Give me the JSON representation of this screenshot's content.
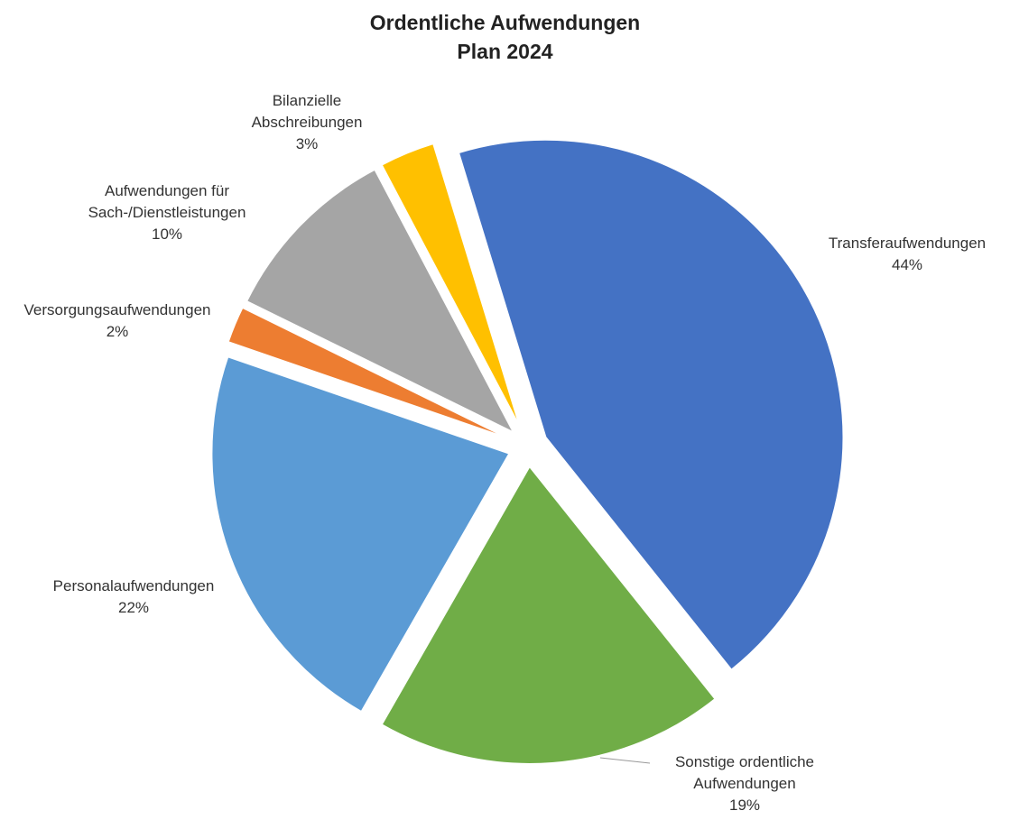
{
  "chart_data": {
    "type": "pie",
    "title": "Ordentliche Aufwendungen",
    "subtitle": "Plan 2024",
    "categories": [
      "Transferaufwendungen",
      "Sonstige ordentliche Aufwendungen",
      "Personalaufwendungen",
      "Versorgungsaufwendungen",
      "Aufwendungen für Sach-/Dienstleistungen",
      "Bilanzielle Abschreibungen"
    ],
    "values": [
      44,
      19,
      22,
      2,
      10,
      3
    ],
    "value_labels": [
      "44%",
      "19%",
      "22%",
      "2%",
      "10%",
      "3%"
    ],
    "colors": [
      "#4472c4",
      "#70ad47",
      "#5b9bd5",
      "#ed7d31",
      "#a5a5a5",
      "#ffc000"
    ]
  }
}
